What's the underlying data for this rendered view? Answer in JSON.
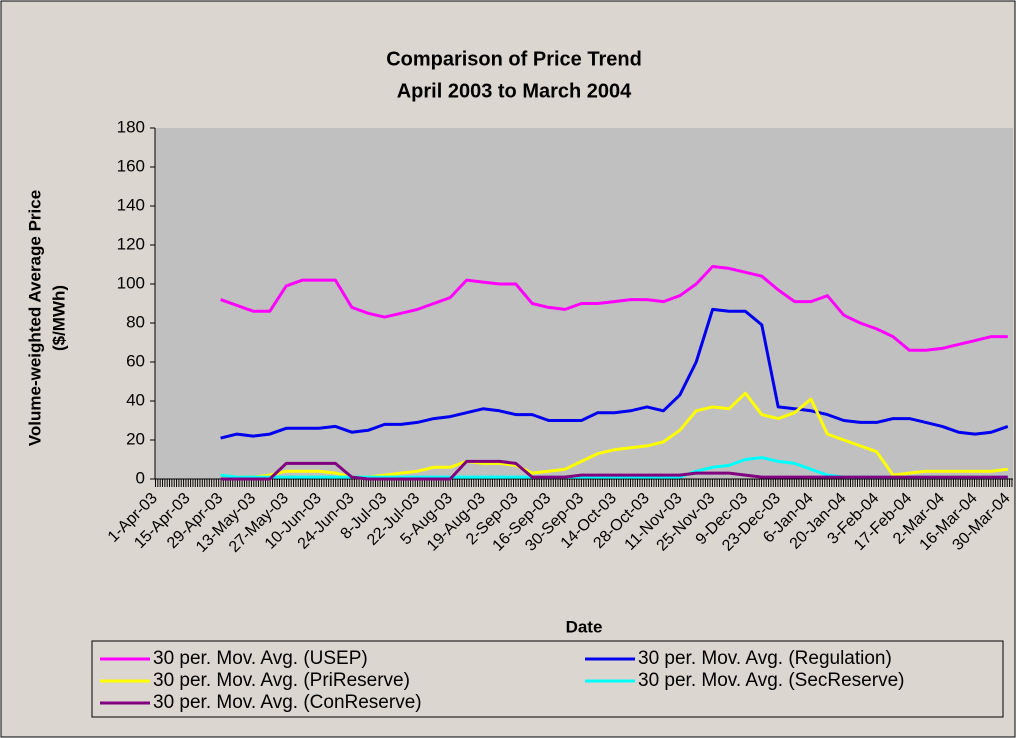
{
  "chart_data": {
    "type": "line",
    "title": "Comparison of Price Trend",
    "subtitle": "April 2003 to March 2004",
    "ylabel": [
      "Volume-weighted Average Price",
      "($/MWh)"
    ],
    "xlabel": "Date",
    "categories": [
      "1-Apr-03",
      null,
      "15-Apr-03",
      null,
      "29-Apr-03",
      null,
      "13-May-03",
      null,
      "27-May-03",
      null,
      "10-Jun-03",
      null,
      "24-Jun-03",
      null,
      "8-Jul-03",
      null,
      "22-Jul-03",
      null,
      "5-Aug-03",
      null,
      "19-Aug-03",
      null,
      "2-Sep-03",
      null,
      "16-Sep-03",
      null,
      "30-Sep-03",
      null,
      "14-Oct-03",
      null,
      "28-Oct-03",
      null,
      "11-Nov-03",
      null,
      "25-Nov-03",
      null,
      "9-Dec-03",
      null,
      "23-Dec-03",
      null,
      "6-Jan-04",
      null,
      "20-Jan-04",
      null,
      "3-Feb-04",
      null,
      "17-Feb-04",
      null,
      "2-Mar-04",
      null,
      "16-Mar-04",
      null,
      "30-Mar-04"
    ],
    "ylim": [
      0,
      180
    ],
    "yticks": [
      0,
      20,
      40,
      60,
      80,
      100,
      120,
      140,
      160,
      180
    ],
    "series": [
      {
        "name": "30 per. Mov. Avg. (USEP)",
        "color": "#ff00ff",
        "values": [
          null,
          null,
          null,
          null,
          92,
          89,
          86,
          86,
          99,
          102,
          102,
          102,
          88,
          85,
          83,
          85,
          87,
          90,
          93,
          102,
          101,
          100,
          100,
          90,
          88,
          87,
          90,
          90,
          91,
          92,
          92,
          91,
          94,
          100,
          109,
          108,
          106,
          104,
          97,
          91,
          91,
          94,
          84,
          80,
          77,
          73,
          66,
          66,
          67,
          69,
          71,
          73,
          73
        ]
      },
      {
        "name": "30 per. Mov. Avg. (Regulation)",
        "color": "#0000ee",
        "values": [
          null,
          null,
          null,
          null,
          21,
          23,
          22,
          23,
          26,
          26,
          26,
          27,
          24,
          25,
          28,
          28,
          29,
          31,
          32,
          34,
          36,
          35,
          33,
          33,
          30,
          30,
          30,
          34,
          34,
          35,
          37,
          35,
          43,
          60,
          87,
          86,
          86,
          79,
          37,
          36,
          35,
          33,
          30,
          29,
          29,
          31,
          31,
          29,
          27,
          24,
          23,
          24,
          27
        ]
      },
      {
        "name": "30 per. Mov. Avg. (PriReserve)",
        "color": "#ffff00",
        "values": [
          null,
          null,
          null,
          null,
          2,
          1,
          1,
          2,
          4,
          4,
          4,
          3,
          1,
          1,
          2,
          3,
          4,
          6,
          6,
          9,
          8,
          8,
          7,
          3,
          4,
          5,
          9,
          13,
          15,
          16,
          17,
          19,
          25,
          35,
          37,
          36,
          44,
          33,
          31,
          34,
          41,
          23,
          20,
          17,
          14,
          2,
          3,
          4,
          4,
          4,
          4,
          4,
          5
        ]
      },
      {
        "name": "30 per. Mov. Avg. (SecReserve)",
        "color": "#00ffff",
        "values": [
          null,
          null,
          null,
          null,
          2,
          1,
          1,
          1,
          1,
          1,
          1,
          1,
          1,
          1,
          1,
          1,
          1,
          1,
          1,
          1,
          1,
          1,
          1,
          1,
          1,
          1,
          1,
          1,
          1,
          1,
          1,
          1,
          1,
          4,
          6,
          7,
          10,
          11,
          9,
          8,
          5,
          2,
          1,
          1,
          1,
          1,
          1,
          1,
          1,
          1,
          1,
          1,
          1
        ]
      },
      {
        "name": "30 per. Mov. Avg. (ConReserve)",
        "color": "#800080",
        "values": [
          null,
          null,
          null,
          null,
          0,
          0,
          0,
          0,
          8,
          8,
          8,
          8,
          1,
          0,
          0,
          0,
          0,
          0,
          0,
          9,
          9,
          9,
          8,
          1,
          1,
          1,
          2,
          2,
          2,
          2,
          2,
          2,
          2,
          3,
          3,
          3,
          2,
          1,
          1,
          1,
          1,
          1,
          1,
          1,
          1,
          1,
          1,
          1,
          1,
          1,
          1,
          1,
          1
        ]
      }
    ]
  }
}
